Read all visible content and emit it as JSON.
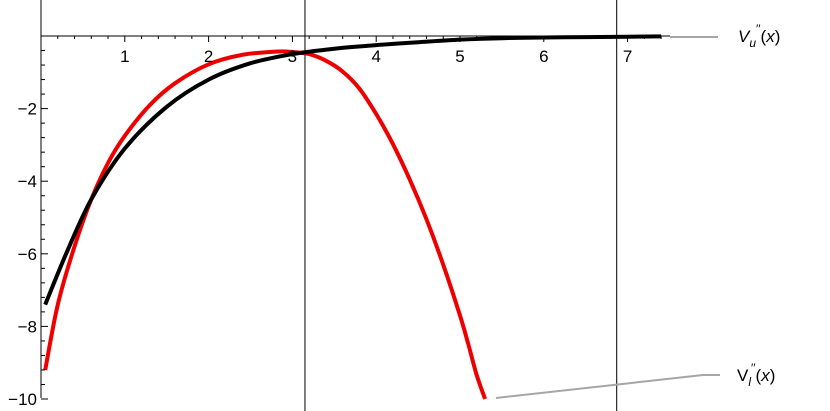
{
  "chart_data": {
    "type": "line",
    "title": "",
    "xlabel": "",
    "ylabel": "",
    "xlim": [
      0,
      7.6
    ],
    "ylim": [
      -10,
      0.35
    ],
    "x_ticks": [
      1,
      2,
      3,
      4,
      5,
      6,
      7
    ],
    "y_ticks": [
      -2,
      -4,
      -6,
      -8,
      -10
    ],
    "x_tick_labels": [
      "1",
      "2",
      "3",
      "4",
      "5",
      "6",
      "7"
    ],
    "y_tick_labels": [
      "−2",
      "−4",
      "−6",
      "−8",
      "−10"
    ],
    "vertical_lines": [
      3.15,
      6.87
    ],
    "grid": false,
    "series": [
      {
        "name": "Vu''(x)",
        "color": "#000000",
        "x": [
          0.05,
          0.3,
          0.6,
          1.0,
          1.5,
          2.0,
          2.5,
          3.0,
          3.5,
          4.0,
          4.5,
          5.0,
          5.5,
          6.0,
          6.5,
          7.0,
          7.4
        ],
        "y": [
          -7.4,
          -6.0,
          -4.5,
          -3.1,
          -1.95,
          -1.2,
          -0.75,
          -0.5,
          -0.35,
          -0.25,
          -0.17,
          -0.1,
          -0.06,
          -0.04,
          -0.03,
          -0.02,
          -0.01
        ]
      },
      {
        "name": "Vl''(x)",
        "color": "#ee0000",
        "x": [
          0.05,
          0.2,
          0.4,
          0.6,
          0.8,
          1.0,
          1.3,
          1.6,
          2.0,
          2.4,
          2.8,
          3.0,
          3.2,
          3.4,
          3.6,
          3.8,
          4.0,
          4.2,
          4.4,
          4.6,
          4.8,
          5.0,
          5.1,
          5.2,
          5.3
        ],
        "y": [
          -9.2,
          -7.4,
          -5.8,
          -4.5,
          -3.5,
          -2.75,
          -1.9,
          -1.3,
          -0.78,
          -0.52,
          -0.43,
          -0.44,
          -0.5,
          -0.68,
          -0.98,
          -1.45,
          -2.15,
          -2.98,
          -3.95,
          -5.05,
          -6.3,
          -7.7,
          -8.5,
          -9.35,
          -10
        ]
      }
    ],
    "legend": [
      {
        "base": "V",
        "sub": "u",
        "sup": "′′",
        "arg": "(x)"
      },
      {
        "base": "V",
        "sub": "l",
        "sup": "′′",
        "arg": "(x)"
      }
    ]
  }
}
